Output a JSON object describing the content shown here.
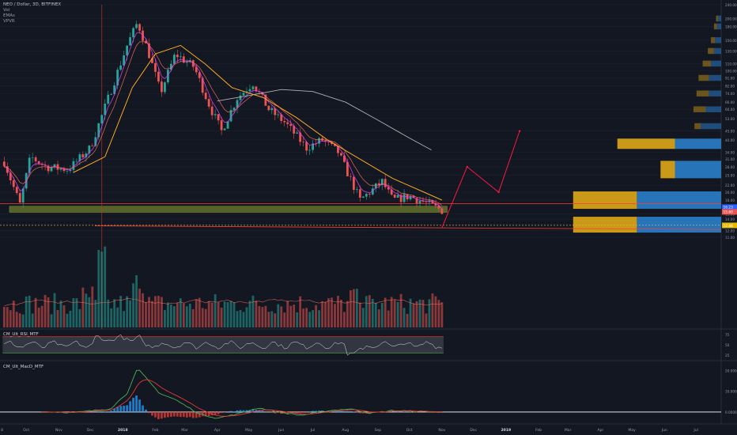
{
  "header": {
    "symbol_line": "NEO / Dollar, 3D, BITFINEX",
    "indicators": [
      "Vol",
      "EMAs",
      "VPVR"
    ]
  },
  "panes": {
    "rsi_label": "CM_Ult_RSI_MTF",
    "macd_label": "CM_Ult_MacD_MTF"
  },
  "colors": {
    "background": "#131722",
    "grid": "#1e2230",
    "axis_text": "#9598a1",
    "candle_up": "#26a69a",
    "candle_down": "#ef5350",
    "ema_fast": "#e040fb",
    "ema_slow": "#f9a825",
    "ema_long": "#b0b0b0",
    "projection": "#ff1744",
    "support_zone": "#6b7d2b",
    "vpvr_gold": "#d4a017",
    "vpvr_blue": "#2979c2",
    "current_price": "#ff3b3b",
    "white_line": "#ffffff"
  },
  "chart_data": [
    {
      "type": "candlestick",
      "title": "NEO / Dollar, 3D, BITFINEX",
      "y_scale": "log",
      "ylim": [
        11.0,
        240.0
      ],
      "y_ticks": [
        "240.00",
        "200.00",
        "180.00",
        "150.00",
        "130.00",
        "110.00",
        "100.00",
        "91.00",
        "82.00",
        "74.00",
        "66.00",
        "60.00",
        "53.00",
        "45.00",
        "40.00",
        "34.00",
        "31.00",
        "28.00",
        "25.00",
        "22.00",
        "20.00",
        "18.00",
        "15.00",
        "14.00",
        "12.00",
        "11.00"
      ],
      "y_tick_values": [
        240,
        200,
        180,
        150,
        130,
        110,
        100,
        91,
        82,
        74,
        66,
        60,
        53,
        45,
        40,
        34,
        31,
        28,
        25,
        22,
        20,
        18,
        15,
        14,
        12,
        11
      ],
      "x_tick_labels": [
        "8",
        "Oct",
        "Nov",
        "Dec",
        "2018",
        "Feb",
        "Mar",
        "Apr",
        "May",
        "Jun",
        "Jul",
        "Aug",
        "Sep",
        "Oct",
        "Nov",
        "Dec",
        "2019",
        "Feb",
        "Mar",
        "Apr",
        "May",
        "Jun",
        "Jul"
      ],
      "price_key_points": [
        {
          "date": "2017-09-10",
          "close": 30
        },
        {
          "date": "2017-09-25",
          "close": 17
        },
        {
          "date": "2017-10-05",
          "close": 32
        },
        {
          "date": "2017-10-20",
          "close": 28
        },
        {
          "date": "2017-11-10",
          "close": 27
        },
        {
          "date": "2017-12-01",
          "close": 36
        },
        {
          "date": "2017-12-20",
          "close": 75
        },
        {
          "date": "2018-01-05",
          "close": 140
        },
        {
          "date": "2018-01-15",
          "close": 190
        },
        {
          "date": "2018-01-25",
          "close": 130
        },
        {
          "date": "2018-02-06",
          "close": 75
        },
        {
          "date": "2018-02-20",
          "close": 125
        },
        {
          "date": "2018-03-10",
          "close": 105
        },
        {
          "date": "2018-03-25",
          "close": 62
        },
        {
          "date": "2018-04-05",
          "close": 45
        },
        {
          "date": "2018-04-20",
          "close": 70
        },
        {
          "date": "2018-05-05",
          "close": 85
        },
        {
          "date": "2018-05-20",
          "close": 60
        },
        {
          "date": "2018-06-05",
          "close": 50
        },
        {
          "date": "2018-06-25",
          "close": 36
        },
        {
          "date": "2018-07-10",
          "close": 40
        },
        {
          "date": "2018-07-25",
          "close": 34
        },
        {
          "date": "2018-08-15",
          "close": 18
        },
        {
          "date": "2018-09-05",
          "close": 23
        },
        {
          "date": "2018-09-15",
          "close": 18
        },
        {
          "date": "2018-10-01",
          "close": 19
        },
        {
          "date": "2018-10-20",
          "close": 17
        },
        {
          "date": "2018-11-01",
          "close": 15.7
        }
      ],
      "ema_slow_points": [
        {
          "date": "2017-11-15",
          "value": 26
        },
        {
          "date": "2017-12-15",
          "value": 32
        },
        {
          "date": "2018-01-10",
          "value": 80
        },
        {
          "date": "2018-02-01",
          "value": 125
        },
        {
          "date": "2018-02-25",
          "value": 140
        },
        {
          "date": "2018-03-20",
          "value": 110
        },
        {
          "date": "2018-04-15",
          "value": 80
        },
        {
          "date": "2018-05-15",
          "value": 70
        },
        {
          "date": "2018-06-15",
          "value": 54
        },
        {
          "date": "2018-07-15",
          "value": 40
        },
        {
          "date": "2018-08-15",
          "value": 31
        },
        {
          "date": "2018-09-15",
          "value": 24
        },
        {
          "date": "2018-10-15",
          "value": 20
        },
        {
          "date": "2018-11-01",
          "value": 18
        }
      ],
      "ema_long_points": [
        {
          "date": "2018-04-01",
          "value": 67
        },
        {
          "date": "2018-05-01",
          "value": 72
        },
        {
          "date": "2018-06-01",
          "value": 78
        },
        {
          "date": "2018-07-01",
          "value": 76
        },
        {
          "date": "2018-08-01",
          "value": 66
        },
        {
          "date": "2018-09-01",
          "value": 52
        },
        {
          "date": "2018-10-01",
          "value": 41
        },
        {
          "date": "2018-10-22",
          "value": 35
        }
      ],
      "projection_points": [
        {
          "date": "2018-11-01",
          "value": 12.5
        },
        {
          "date": "2018-11-25",
          "value": 28
        },
        {
          "date": "2018-12-25",
          "value": 20
        },
        {
          "date": "2019-01-14",
          "value": 45
        }
      ],
      "support_zone": {
        "from": "2017-09-15",
        "to": "2018-11-06",
        "low": 15.3,
        "high": 16.6
      },
      "horizontal_lines": [
        {
          "value": 17.2,
          "color": "red"
        },
        {
          "value": 12.8,
          "color": "red"
        },
        {
          "value": 12.9,
          "color": "yellow_dashed"
        }
      ],
      "vertical_line": {
        "date": "2017-12-12"
      },
      "price_labels": [
        "16.23",
        "15.60",
        "12.88"
      ],
      "vpvr": [
        {
          "price": 200,
          "up": 0.03,
          "down": 0.02
        },
        {
          "price": 180,
          "up": 0.04,
          "down": 0.03
        },
        {
          "price": 150,
          "up": 0.06,
          "down": 0.04
        },
        {
          "price": 130,
          "up": 0.07,
          "down": 0.06
        },
        {
          "price": 110,
          "up": 0.1,
          "down": 0.08
        },
        {
          "price": 91,
          "up": 0.12,
          "down": 0.1
        },
        {
          "price": 74,
          "up": 0.12,
          "down": 0.12
        },
        {
          "price": 60,
          "up": 0.15,
          "down": 0.12
        },
        {
          "price": 48,
          "up": 0.2,
          "down": 0.06
        },
        {
          "price": 38,
          "up": 0.45,
          "down": 0.56
        },
        {
          "price": 27,
          "up": 0.45,
          "down": 0.14
        },
        {
          "price": 18,
          "up": 0.82,
          "down": 0.62
        },
        {
          "price": 13,
          "up": 0.82,
          "down": 0.62
        }
      ]
    },
    {
      "type": "bar",
      "title": "Vol",
      "description_values": "volume spikes around 2017-12-12, 2018-01-15, 2018-08-10"
    },
    {
      "type": "line",
      "title": "CM_Ult_RSI_MTF",
      "y_ticks": [
        "75",
        "50",
        "25"
      ],
      "y_tick_values": [
        75,
        50,
        25
      ],
      "ylim": [
        15,
        85
      ],
      "bands": [
        70,
        30
      ]
    },
    {
      "type": "line",
      "title": "CM_Ult_MacD_MTF",
      "y_ticks": [
        "20.0000",
        "10.0000",
        "0.0000"
      ],
      "y_tick_values": [
        20,
        10,
        0
      ],
      "ylim": [
        -5,
        24
      ],
      "macd_key_points": [
        {
          "date": "2017-10-15",
          "value": 0.2
        },
        {
          "date": "2017-11-15",
          "value": -0.3
        },
        {
          "date": "2017-12-20",
          "value": 1.5
        },
        {
          "date": "2018-01-05",
          "value": 9
        },
        {
          "date": "2018-01-15",
          "value": 21
        },
        {
          "date": "2018-02-05",
          "value": 9
        },
        {
          "date": "2018-02-20",
          "value": 6
        },
        {
          "date": "2018-03-15",
          "value": -1
        },
        {
          "date": "2018-04-01",
          "value": -3
        },
        {
          "date": "2018-04-20",
          "value": -1
        },
        {
          "date": "2018-05-10",
          "value": 2
        },
        {
          "date": "2018-06-01",
          "value": -0.3
        },
        {
          "date": "2018-06-20",
          "value": -1.6
        },
        {
          "date": "2018-07-15",
          "value": 0.6
        },
        {
          "date": "2018-08-05",
          "value": 1.5
        },
        {
          "date": "2018-08-25",
          "value": -0.6
        },
        {
          "date": "2018-09-15",
          "value": 0.7
        },
        {
          "date": "2018-10-15",
          "value": 0.2
        },
        {
          "date": "2018-11-01",
          "value": 0
        }
      ]
    }
  ]
}
